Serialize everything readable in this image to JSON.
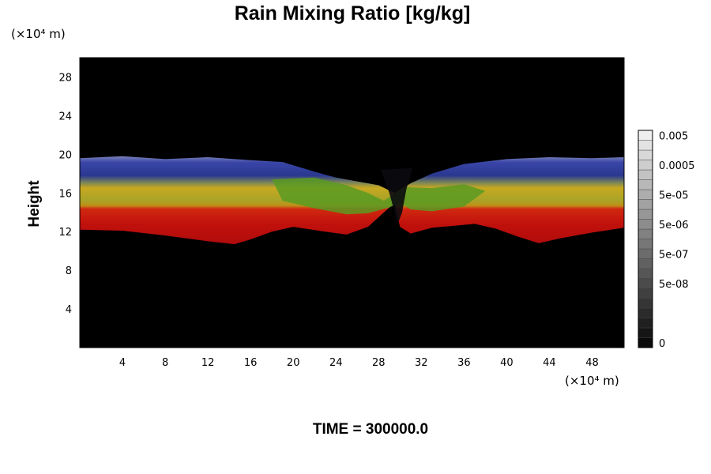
{
  "chart_data": {
    "type": "heatmap",
    "title": "Rain Mixing Ratio [kg/kg]",
    "ylabel": "Height",
    "xunit": "(×10⁴ m)",
    "yunit": "(×10⁴ m)",
    "xlim": [
      0,
      51
    ],
    "ylim": [
      0,
      30
    ],
    "x_ticks": [
      4,
      8,
      12,
      16,
      20,
      24,
      28,
      32,
      36,
      40,
      44,
      48
    ],
    "y_ticks": [
      4,
      8,
      12,
      16,
      20,
      24,
      28
    ],
    "footer": "TIME = 300000.0",
    "background_color": "#000000",
    "colorbar": {
      "levels": 22,
      "tick_labels": [
        "0.005",
        "0.0005",
        "5e-05",
        "5e-06",
        "5e-07",
        "5e-08",
        "0"
      ],
      "tick_levels": [
        21,
        18,
        15,
        12,
        9,
        6,
        0
      ]
    },
    "layers": [
      {
        "name": "blue-band",
        "color": "#3a46a8",
        "ymin": 16.5,
        "ymax": 19.8
      },
      {
        "name": "yellow-band",
        "color": "#a8a428",
        "ymin": 14.5,
        "ymax": 17.5
      },
      {
        "name": "green-band",
        "color": "#5a9a22",
        "ymin": 14.0,
        "ymax": 17.5
      },
      {
        "name": "red-band",
        "color": "#c0100c",
        "ymin": 10.8,
        "ymax": 15.0
      }
    ]
  }
}
